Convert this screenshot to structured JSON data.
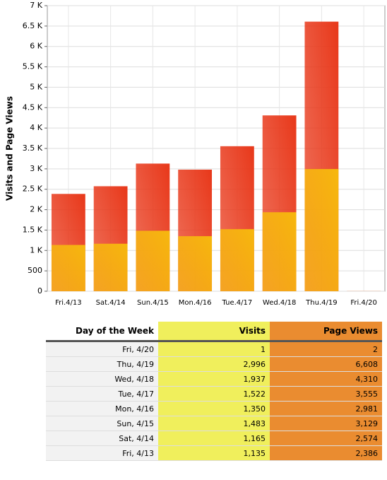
{
  "chart_data": {
    "type": "bar",
    "y_label": "Visits and Page Views",
    "categories": [
      "Fri.4/13",
      "Sat.4/14",
      "Sun.4/15",
      "Mon.4/16",
      "Tue.4/17",
      "Wed.4/18",
      "Thu.4/19",
      "Fri.4/20"
    ],
    "series": [
      {
        "name": "Page Views",
        "color": "#e8381a",
        "values": [
          2386,
          2574,
          3129,
          2981,
          3555,
          4310,
          6608,
          2
        ]
      },
      {
        "name": "Visits",
        "color": "#f7b80e",
        "values": [
          1135,
          1165,
          1483,
          1350,
          1522,
          1937,
          2996,
          1
        ]
      }
    ],
    "ylim": [
      0,
      7000
    ],
    "yticks": [
      0,
      500,
      {
        "value": 1000,
        "label": "1 K"
      },
      {
        "value": 1500,
        "label": "1.5 K"
      },
      {
        "value": 2000,
        "label": "2 K"
      },
      {
        "value": 2500,
        "label": "2.5 K"
      },
      {
        "value": 3000,
        "label": "3 K"
      },
      {
        "value": 3500,
        "label": "3.5 K"
      },
      {
        "value": 4000,
        "label": "4 K"
      },
      {
        "value": 4500,
        "label": "4.5 K"
      },
      {
        "value": 5000,
        "label": "5 K"
      },
      {
        "value": 5500,
        "label": "5.5 K"
      },
      {
        "value": 6000,
        "label": "6 K"
      },
      {
        "value": 6500,
        "label": "6.5 K"
      },
      {
        "value": 7000,
        "label": "7 K"
      }
    ],
    "grid": true
  },
  "table": {
    "header": [
      "Day of the Week",
      "Visits",
      "Page Views"
    ],
    "rows": [
      [
        "Fri, 4/20",
        "1",
        "2"
      ],
      [
        "Thu, 4/19",
        "2,996",
        "6,608"
      ],
      [
        "Wed, 4/18",
        "1,937",
        "4,310"
      ],
      [
        "Tue, 4/17",
        "1,522",
        "3,555"
      ],
      [
        "Mon, 4/16",
        "1,350",
        "2,981"
      ],
      [
        "Sun, 4/15",
        "1,483",
        "3,129"
      ],
      [
        "Sat, 4/14",
        "1,165",
        "2,574"
      ],
      [
        "Fri, 4/13",
        "1,135",
        "2,386"
      ]
    ]
  }
}
